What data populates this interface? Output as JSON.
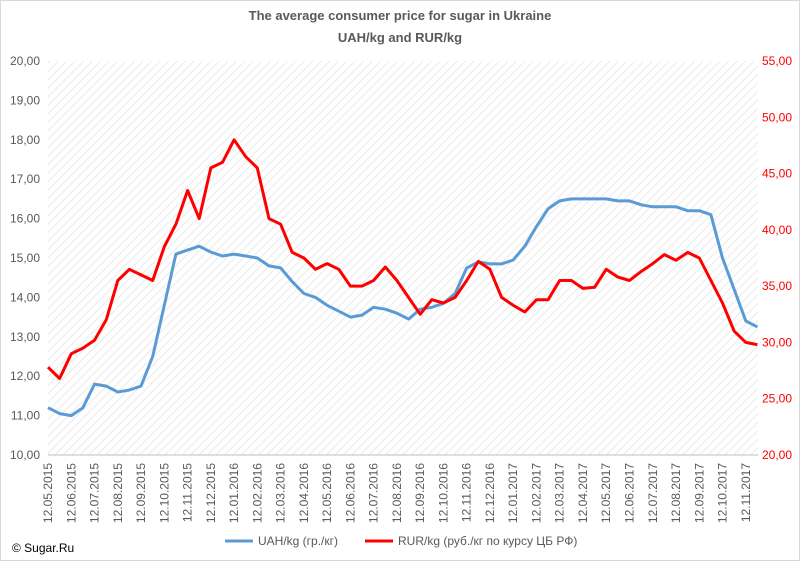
{
  "chart_data": {
    "type": "line",
    "title": "The average consumer price for sugar in Ukraine",
    "subtitle": "UAH/kg and RUR/kg",
    "copyright": "© Sugar.Ru",
    "categories": [
      "12.05.2015",
      null,
      "12.06.2015",
      null,
      "12.07.2015",
      null,
      "12.08.2015",
      null,
      "12.09.2015",
      null,
      "12.10.2015",
      null,
      "12.11.2015",
      null,
      "12.12.2015",
      null,
      "12.01.2016",
      null,
      "12.02.2016",
      null,
      "12.03.2016",
      null,
      "12.04.2016",
      null,
      "12.05.2016",
      null,
      "12.06.2016",
      null,
      "12.07.2016",
      null,
      "12.08.2016",
      null,
      "12.09.2016",
      null,
      "12.10.2016",
      null,
      "12.11.2016",
      null,
      "12.12.2016",
      null,
      "12.01.2017",
      null,
      "12.02.2017",
      null,
      "12.03.2017",
      null,
      "12.04.2017",
      null,
      "12.05.2017",
      null,
      "12.06.2017",
      null,
      "12.07.2017",
      null,
      "12.08.2017",
      null,
      "12.09.2017",
      null,
      "12.10.2017",
      null,
      "12.11.2017",
      null
    ],
    "series": [
      {
        "name": "UAH/kg  (гр./кг)",
        "color": "#5b9bd5",
        "values": [
          11.2,
          11.05,
          11.0,
          11.2,
          11.8,
          11.75,
          11.6,
          11.65,
          11.75,
          12.5,
          13.8,
          15.1,
          15.2,
          15.3,
          15.15,
          15.05,
          15.1,
          15.05,
          15.0,
          14.8,
          14.75,
          14.4,
          14.1,
          14.0,
          13.8,
          13.65,
          13.5,
          13.55,
          13.75,
          13.7,
          13.6,
          13.45,
          13.7,
          13.75,
          13.85,
          14.1,
          14.75,
          14.9,
          14.85,
          14.85,
          14.95,
          15.3,
          15.8,
          16.25,
          16.45,
          16.5,
          16.5,
          16.5,
          16.5,
          16.45,
          16.45,
          16.35,
          16.3,
          16.3,
          16.3,
          16.2,
          16.2,
          16.1,
          15.0,
          14.2,
          13.4,
          13.25
        ]
      },
      {
        "name": "RUR/kg (руб./кг по курсу ЦБ РФ)",
        "color": "#ff0000",
        "axis": "y2",
        "values": [
          27.8,
          26.8,
          29.0,
          29.5,
          30.2,
          32.0,
          35.5,
          36.5,
          36.0,
          35.5,
          38.5,
          40.5,
          43.5,
          41.0,
          45.5,
          46.0,
          48.0,
          46.5,
          45.5,
          41.0,
          40.5,
          38.0,
          37.5,
          36.5,
          37.0,
          36.5,
          35.0,
          35.0,
          35.5,
          36.7,
          35.5,
          34.0,
          32.5,
          33.8,
          33.5,
          34.0,
          35.5,
          37.2,
          36.5,
          34.0,
          33.3,
          32.7,
          33.8,
          33.8,
          35.5,
          35.5,
          34.8,
          34.9,
          36.5,
          35.8,
          35.5,
          36.3,
          37.0,
          37.8,
          37.3,
          38.0,
          37.5,
          35.5,
          33.5,
          31.0,
          30.0,
          29.8
        ]
      }
    ],
    "ylim": [
      10,
      20
    ],
    "yticks": [
      {
        "value": 10,
        "label": "10,00"
      },
      {
        "value": 11,
        "label": "11,00"
      },
      {
        "value": 12,
        "label": "12,00"
      },
      {
        "value": 13,
        "label": "13,00"
      },
      {
        "value": 14,
        "label": "14,00"
      },
      {
        "value": 15,
        "label": "15,00"
      },
      {
        "value": 16,
        "label": "16,00"
      },
      {
        "value": 17,
        "label": "17,00"
      },
      {
        "value": 18,
        "label": "18,00"
      },
      {
        "value": 19,
        "label": "19,00"
      },
      {
        "value": 20,
        "label": "20,00"
      }
    ],
    "y2lim": [
      20,
      55
    ],
    "y2ticks": [
      {
        "value": 20,
        "label": "20,00"
      },
      {
        "value": 25,
        "label": "25,00"
      },
      {
        "value": 30,
        "label": "30,00"
      },
      {
        "value": 35,
        "label": "35,00"
      },
      {
        "value": 40,
        "label": "40,00"
      },
      {
        "value": 45,
        "label": "45,00"
      },
      {
        "value": 50,
        "label": "50,00"
      },
      {
        "value": 55,
        "label": "55,00"
      }
    ]
  }
}
